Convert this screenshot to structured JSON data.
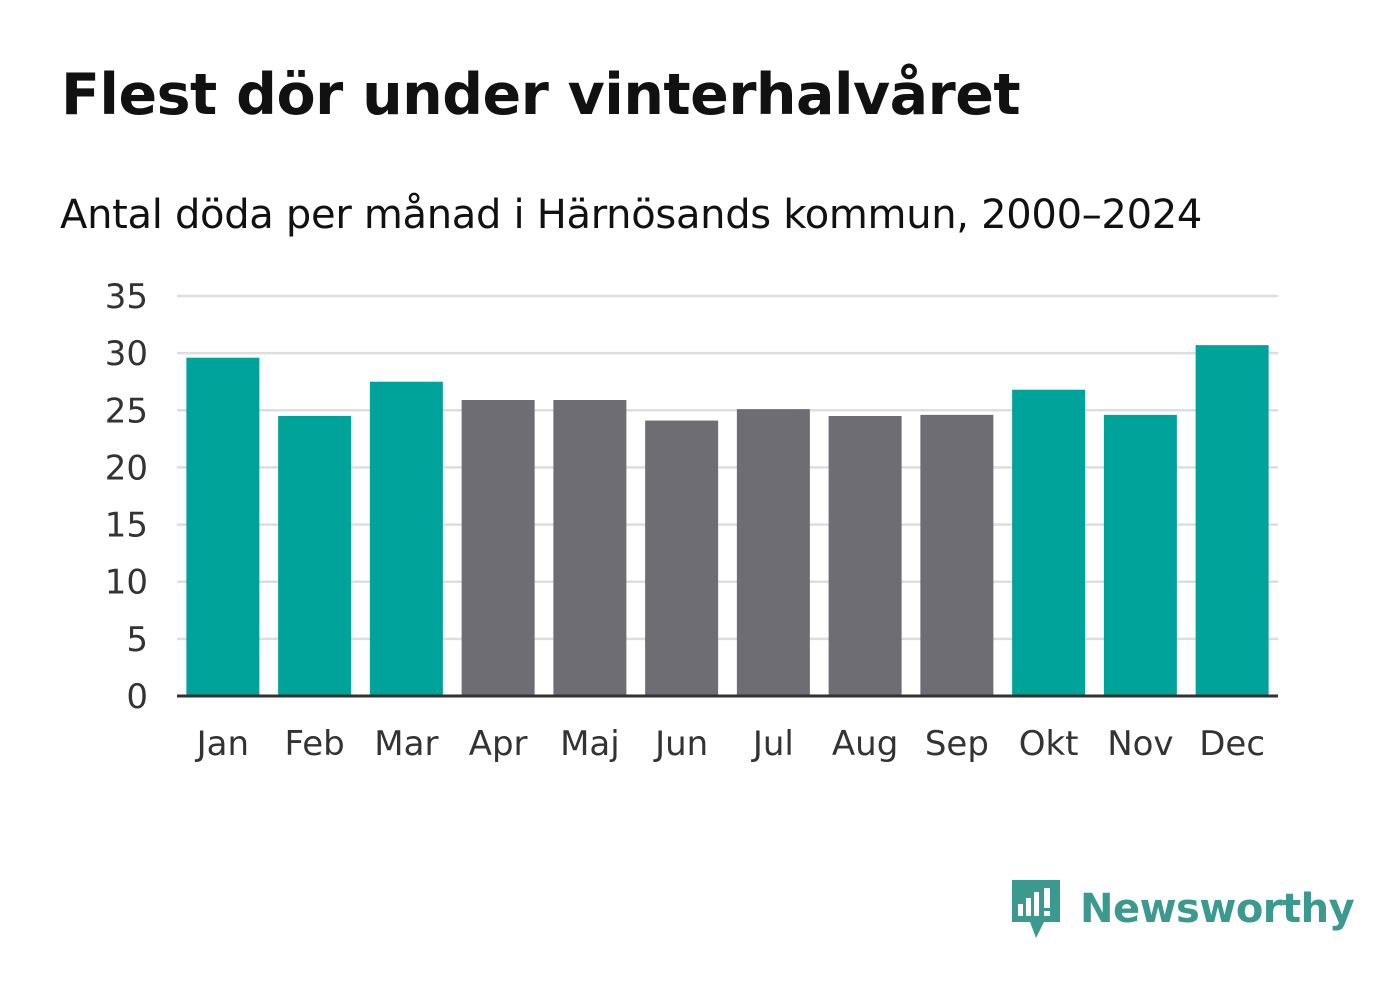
{
  "title": "Flest dör under vinterhalvåret",
  "subtitle": "Antal döda per månad i Härnösands kommun, 2000–2024",
  "brand": {
    "name": "Newsworthy",
    "color": "#3c9990"
  },
  "colors": {
    "winter": "#00a39a",
    "summer": "#6d6d73",
    "grid": "#dedede",
    "axis": "#333333"
  },
  "chart_data": {
    "type": "bar",
    "title": "Flest dör under vinterhalvåret",
    "subtitle": "Antal döda per månad i Härnösands kommun, 2000–2024",
    "xlabel": "",
    "ylabel": "",
    "ylim": [
      0,
      35
    ],
    "yticks": [
      0,
      5,
      10,
      15,
      20,
      25,
      30,
      35
    ],
    "grid": true,
    "categories": [
      "Jan",
      "Feb",
      "Mar",
      "Apr",
      "Maj",
      "Jun",
      "Jul",
      "Aug",
      "Sep",
      "Okt",
      "Nov",
      "Dec"
    ],
    "values": [
      29.6,
      24.5,
      27.5,
      25.9,
      25.9,
      24.1,
      25.1,
      24.5,
      24.6,
      26.8,
      24.6,
      30.7
    ],
    "groups": [
      "winter",
      "winter",
      "winter",
      "summer",
      "summer",
      "summer",
      "summer",
      "summer",
      "summer",
      "winter",
      "winter",
      "winter"
    ]
  }
}
